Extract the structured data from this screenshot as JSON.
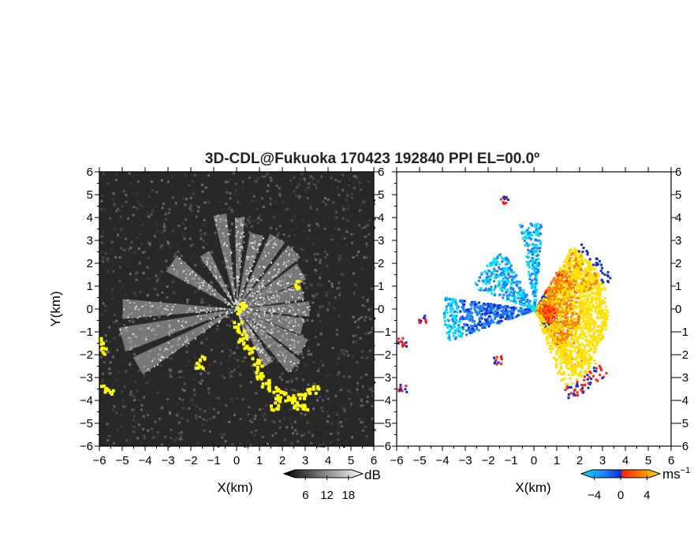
{
  "title": "3D-CDL@Fukuoka 170423 192840 PPI EL=00.0º",
  "chart_data": [
    {
      "type": "heatmap",
      "panel": "left",
      "xlabel": "X(km)",
      "ylabel": "Y(km)",
      "xlim": [
        -6,
        6
      ],
      "ylim": [
        -6,
        6
      ],
      "xticks": [
        "−6",
        "−5",
        "−4",
        "−3",
        "−2",
        "−1",
        "0",
        "1",
        "2",
        "3",
        "4",
        "5",
        "6"
      ],
      "yticks": [
        "6",
        "5",
        "4",
        "3",
        "2",
        "1",
        "0",
        "−1",
        "−2",
        "−3",
        "−4",
        "−5",
        "−6"
      ],
      "colorbar": {
        "unit": "dB",
        "ticks": [
          "6",
          "12",
          "18"
        ],
        "range": [
          0,
          22
        ],
        "colors": [
          "#000000",
          "#ffffff"
        ]
      },
      "overlay_color": "#ffff00"
    },
    {
      "type": "heatmap",
      "panel": "right",
      "xlabel": "X(km)",
      "xlim": [
        -6,
        6
      ],
      "ylim": [
        -6,
        6
      ],
      "xticks": [
        "−6",
        "−5",
        "−4",
        "−3",
        "−2",
        "−1",
        "0",
        "1",
        "2",
        "3",
        "4",
        "5",
        "6"
      ],
      "yticks": [
        "6",
        "5",
        "4",
        "3",
        "2",
        "1",
        "0",
        "−1",
        "−2",
        "−3",
        "−4",
        "−5",
        "−6"
      ],
      "colorbar": {
        "unit": "ms",
        "unit_exp": "−1",
        "ticks": [
          "−4",
          "0",
          "4"
        ],
        "range": [
          -6,
          6
        ],
        "colors": [
          "#00e0ff",
          "#1f7fff",
          "#0a2fd8",
          "#ff2010",
          "#ff7a00",
          "#ffe000"
        ]
      }
    }
  ]
}
